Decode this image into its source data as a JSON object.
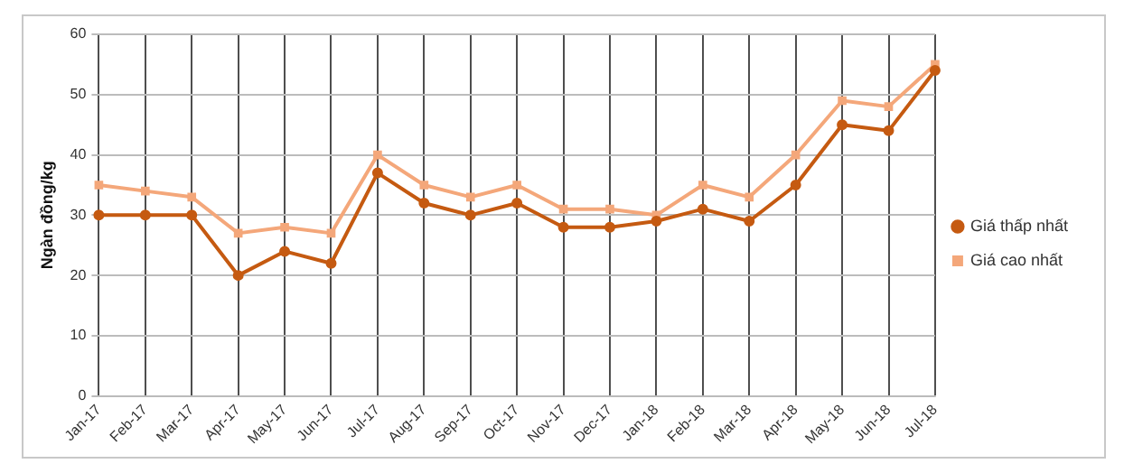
{
  "chart_data": {
    "type": "line",
    "ylabel": "Ngàn đồng/kg",
    "categories": [
      "Jan-17",
      "Feb-17",
      "Mar-17",
      "Apr-17",
      "May-17",
      "Jun-17",
      "Jul-17",
      "Aug-17",
      "Sep-17",
      "Oct-17",
      "Nov-17",
      "Dec-17",
      "Jan-18",
      "Feb-18",
      "Mar-18",
      "Apr-18",
      "May-18",
      "Jun-18",
      "Jul-18"
    ],
    "series": [
      {
        "name": "Giá thấp nhất",
        "color": "#c55a11",
        "marker": "circle",
        "values": [
          30,
          30,
          30,
          20,
          24,
          22,
          37,
          32,
          30,
          32,
          28,
          28,
          29,
          31,
          29,
          35,
          45,
          44,
          54
        ]
      },
      {
        "name": "Giá cao nhất",
        "color": "#f4a77a",
        "marker": "square",
        "values": [
          35,
          34,
          33,
          27,
          28,
          27,
          40,
          35,
          33,
          35,
          31,
          31,
          30,
          35,
          33,
          40,
          49,
          48,
          55
        ]
      }
    ],
    "ylim": [
      0,
      60
    ],
    "yticks": [
      0,
      10,
      20,
      30,
      40,
      50,
      60
    ],
    "grid": true,
    "legend": "right",
    "line_style": "solid"
  }
}
